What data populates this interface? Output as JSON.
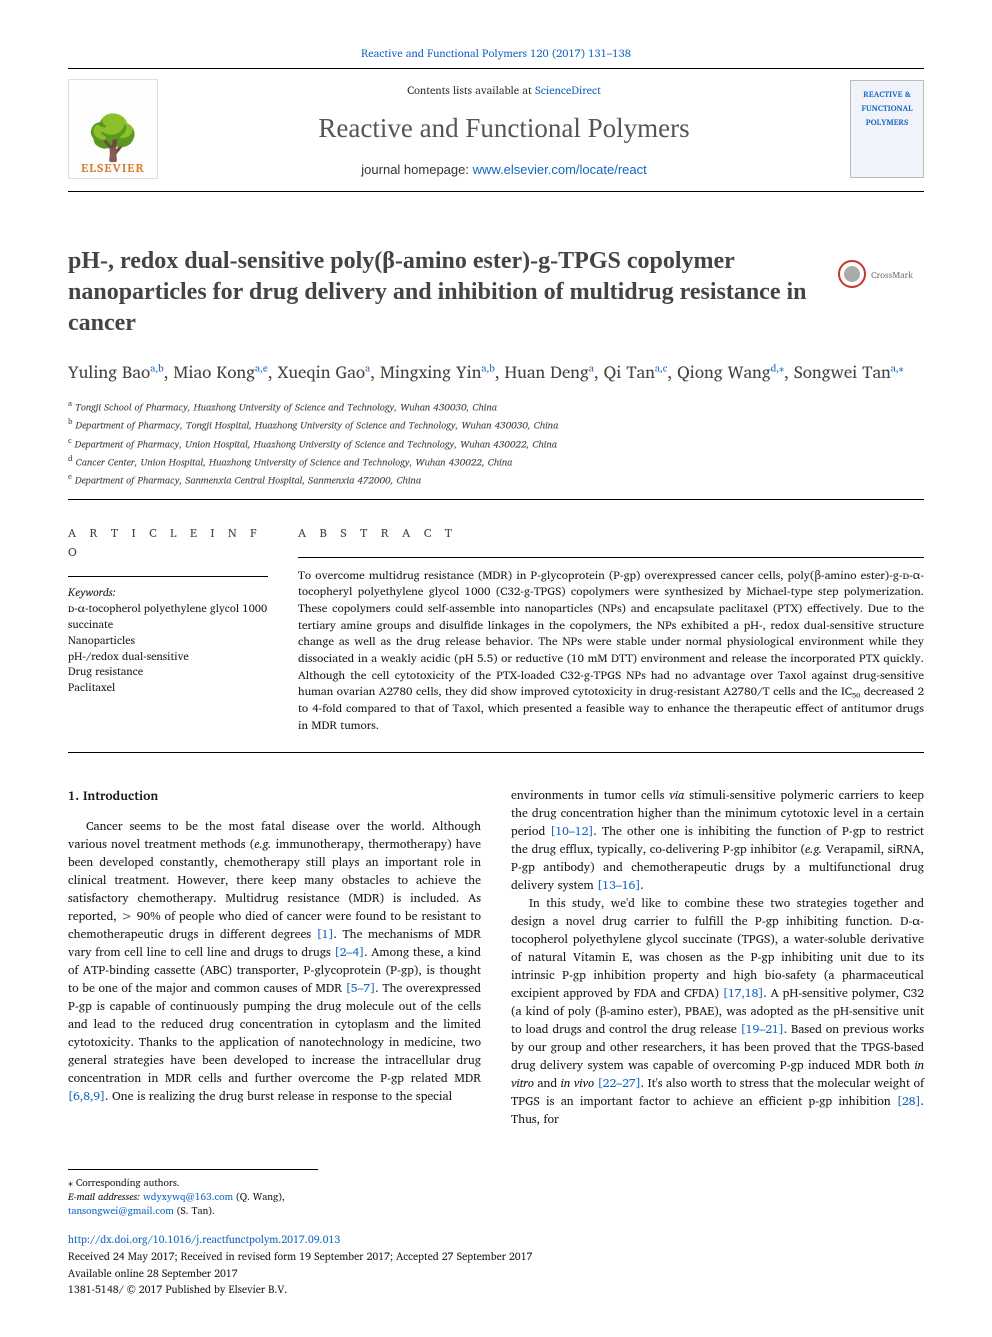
{
  "colors": {
    "link": "#1565c0",
    "elsevier_orange": "#d67b2a",
    "text": "#1a1a1a",
    "muted_heading": "#444",
    "background": "#ffffff"
  },
  "header": {
    "top_citation": "Reactive and Functional Polymers 120 (2017) 131–138",
    "contents_prefix": "Contents lists available at ",
    "contents_link": "ScienceDirect",
    "journal_name": "Reactive and Functional Polymers",
    "homepage_prefix": "journal homepage: ",
    "homepage_url": "www.elsevier.com/locate/react",
    "publisher_logo_text": "ELSEVIER",
    "cover_text": "REACTIVE & FUNCTIONAL POLYMERS"
  },
  "crossmark_label": "CrossMark",
  "title": "pH-, redox dual-sensitive poly(β-amino ester)-g-TPGS copolymer nanoparticles for drug delivery and inhibition of multidrug resistance in cancer",
  "authors_html": "Yuling Bao<sup>a,b</sup>, Miao Kong<sup>a,e</sup>, Xueqin Gao<sup>a</sup>, Mingxing Yin<sup>a,b</sup>, Huan Deng<sup>a</sup>, Qi Tan<sup>a,c</sup>, Qiong Wang<sup>d,</sup><sup class='ast'>⁎</sup>, Songwei Tan<sup>a,</sup><sup class='ast'>⁎</sup>",
  "affiliations": [
    {
      "key": "a",
      "text": "Tongji School of Pharmacy, Huazhong University of Science and Technology, Wuhan 430030, China"
    },
    {
      "key": "b",
      "text": "Department of Pharmacy, Tongji Hospital, Huazhong University of Science and Technology, Wuhan 430030, China"
    },
    {
      "key": "c",
      "text": "Department of Pharmacy, Union Hospital, Huazhong University of Science and Technology, Wuhan 430022, China"
    },
    {
      "key": "d",
      "text": "Cancer Center, Union Hospital, Huazhong University of Science and Technology, Wuhan 430022, China"
    },
    {
      "key": "e",
      "text": "Department of Pharmacy, Sanmenxia Central Hospital, Sanmenxia 472000, China"
    }
  ],
  "labels": {
    "article_info": "A R T I C L E  I N F O",
    "abstract": "A B S T R A C T",
    "keywords_head": "Keywords:"
  },
  "keywords": [
    "ᴅ-α-tocopherol polyethylene glycol 1000 succinate",
    "Nanoparticles",
    "pH-/redox dual-sensitive",
    "Drug resistance",
    "Paclitaxel"
  ],
  "abstract": "To overcome multidrug resistance (MDR) in P-glycoprotein (P-gp) overexpressed cancer cells, poly(β-amino ester)-g-ᴅ-α-tocopheryl polyethylene glycol 1000 (C32-g-TPGS) copolymers were synthesized by Michael-type step polymerization. These copolymers could self-assemble into nanoparticles (NPs) and encapsulate paclitaxel (PTX) effectively. Due to the tertiary amine groups and disulfide linkages in the copolymers, the NPs exhibited a pH-, redox dual-sensitive structure change as well as the drug release behavior. The NPs were stable under normal physiological environment while they dissociated in a weakly acidic (pH 5.5) or reductive (10 mM DTT) environment and release the incorporated PTX quickly. Although the cell cytotoxicity of the PTX-loaded C32-g-TPGS NPs had no advantage over Taxol against drug-sensitive human ovarian A2780 cells, they did show improved cytotoxicity in drug-resistant A2780/T cells and the IC₅₀ decreased 2 to 4-fold compared to that of Taxol, which presented a feasible way to enhance the therapeutic effect of antitumor drugs in MDR tumors.",
  "body": {
    "section_number": "1.",
    "section_title": "Introduction",
    "para1": "Cancer seems to be the most fatal disease over the world. Although various novel treatment methods (e.g. immunotherapy, thermotherapy) have been developed constantly, chemotherapy still plays an important role in clinical treatment. However, there keep many obstacles to achieve the satisfactory chemotherapy. Multidrug resistance (MDR) is included. As reported, > 90% of people who died of cancer were found to be resistant to chemotherapeutic drugs in different degrees [1]. The mechanisms of MDR vary from cell line to cell line and drugs to drugs [2–4]. Among these, a kind of ATP-binding cassette (ABC) transporter, P-glycoprotein (P-gp), is thought to be one of the major and common causes of MDR [5–7]. The overexpressed P-gp is capable of continuously pumping the drug molecule out of the cells and lead to the reduced drug concentration in cytoplasm and the limited cytotoxicity. Thanks to the application of nanotechnology in medicine, two general strategies have been developed to increase the intracellular drug concentration in MDR cells and further overcome the P-gp related MDR [6,8,9]. One is realizing the drug burst release in response to the special",
    "para2": "environments in tumor cells via stimuli-sensitive polymeric carriers to keep the drug concentration higher than the minimum cytotoxic level in a certain period [10–12]. The other one is inhibiting the function of P-gp to restrict the drug efflux, typically, co-delivering P-gp inhibitor (e.g. Verapamil, siRNA, P-gp antibody) and chemotherapeutic drugs by a multifunctional drug delivery system [13–16].",
    "para3": "In this study, we'd like to combine these two strategies together and design a novel drug carrier to fulfill the P-gp inhibiting function. D-α-tocopherol polyethylene glycol succinate (TPGS), a water-soluble derivative of natural Vitamin E, was chosen as the P-gp inhibiting unit due to its intrinsic P-gp inhibition property and high bio-safety (a pharmaceutical excipient approved by FDA and CFDA) [17,18]. A pH-sensitive polymer, C32 (a kind of poly (β-amino ester), PBAE), was adopted as the pH-sensitive unit to load drugs and control the drug release [19–21]. Based on previous works by our group and other researchers, it has been proved that the TPGS-based drug delivery system was capable of overcoming P-gp induced MDR both in vitro and in vivo [22–27]. It's also worth to stress that the molecular weight of TPGS is an important factor to achieve an efficient p-gp inhibition [28]. Thus, for",
    "refs_in_text": [
      "[1]",
      "[2–4]",
      "[5–7]",
      "[6,8,9]",
      "[10–12]",
      "[13–16]",
      "[17,18]",
      "[19–21]",
      "[22–27]",
      "[28]"
    ]
  },
  "footer": {
    "corr_label": "⁎ Corresponding authors.",
    "email_label": "E-mail addresses:",
    "email1": "wdyxywq@163.com",
    "email1_who": "(Q. Wang),",
    "email2": "tansongwei@gmail.com",
    "email2_who": "(S. Tan).",
    "doi": "http://dx.doi.org/10.1016/j.reactfunctpolym.2017.09.013",
    "received": "Received 24 May 2017; Received in revised form 19 September 2017; Accepted 27 September 2017",
    "available": "Available online 28 September 2017",
    "copyright": "1381-5148/ © 2017 Published by Elsevier B.V."
  }
}
